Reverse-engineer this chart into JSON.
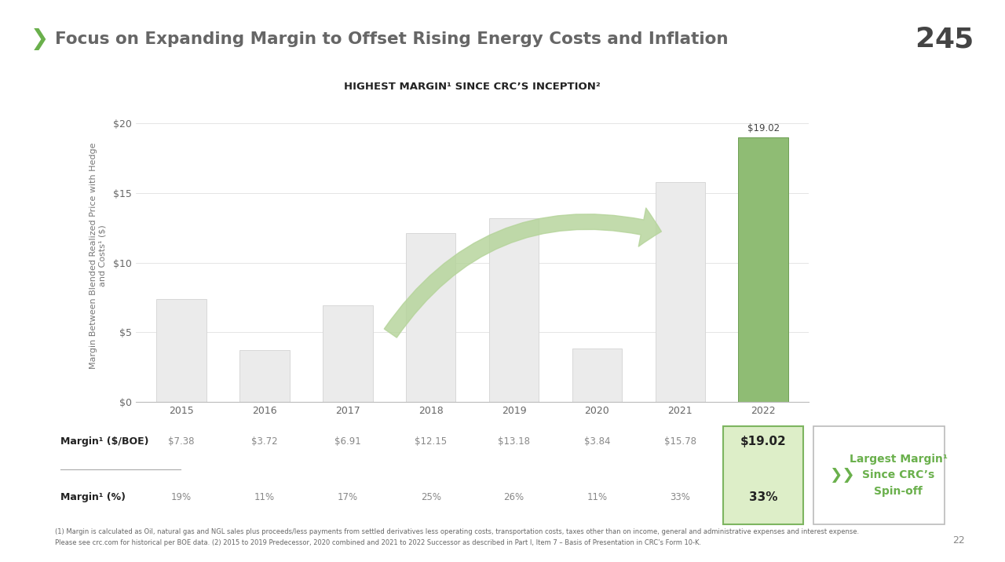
{
  "title": "Focus on Expanding Margin to Offset Rising Energy Costs and Inflation",
  "subtitle": "HIGHEST MARGIN¹ SINCE CRC’S INCEPTION²",
  "years": [
    "2015",
    "2016",
    "2017",
    "2018",
    "2019",
    "2020",
    "2021",
    "2022"
  ],
  "values": [
    7.38,
    3.72,
    6.91,
    12.15,
    13.18,
    3.84,
    15.78,
    19.02
  ],
  "bar_colors": [
    "#ebebeb",
    "#ebebeb",
    "#ebebeb",
    "#ebebeb",
    "#ebebeb",
    "#ebebeb",
    "#ebebeb",
    "#8fbc74"
  ],
  "bar_edge_colors": [
    "#d8d8d8",
    "#d8d8d8",
    "#d8d8d8",
    "#d8d8d8",
    "#d8d8d8",
    "#d8d8d8",
    "#d8d8d8",
    "#6fa055"
  ],
  "margin_boe": [
    "$7.38",
    "$3.72",
    "$6.91",
    "$12.15",
    "$13.18",
    "$3.84",
    "$15.78",
    "$19.02"
  ],
  "margin_pct": [
    "19%",
    "11%",
    "17%",
    "25%",
    "26%",
    "11%",
    "33%",
    "33%"
  ],
  "ylabel": "Margin Between Blended Realized Price with Hedge\nand Costs¹ ($)",
  "ylim": [
    0,
    21
  ],
  "yticks": [
    0,
    5,
    10,
    15,
    20
  ],
  "ytick_labels": [
    "$0",
    "$5",
    "$10",
    "$15",
    "$20"
  ],
  "top_label_value": "$19.02",
  "background_color": "#ffffff",
  "title_color": "#666666",
  "chevron_color": "#6ab04c",
  "subtitle_color": "#222222",
  "bar_label_color": "#555555",
  "highlight_box_color": "#ddeec8",
  "highlight_box_edge": "#7db560",
  "largest_margin_text": "Largest Margin¹\nSince CRC’s\nSpin-off",
  "footnote1": "(1) Margin is calculated as Oil, natural gas and NGL sales plus proceeds/less payments from settled derivatives less operating costs, transportation costs, taxes other than on income, general and administrative expenses and interest expense.",
  "footnote2": "Please see crc.com for historical per BOE data. (2) 2015 to 2019 Predecessor, 2020 combined and 2021 to 2022 Successor as described in Part I, Item 7 – Basis of Presentation in CRC’s Form 10-K.",
  "page_number": "22",
  "arrow_color": "#b5d49a",
  "table_label_color": "#888888",
  "table_highlight_color": "#222222"
}
